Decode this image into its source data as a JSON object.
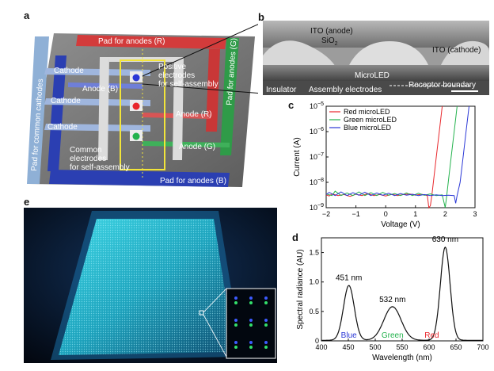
{
  "panels": {
    "a": {
      "label": "a",
      "texts": {
        "pad_r": "Pad for anodes (R)",
        "pad_g": "Pad for anodes (G)",
        "pad_b": "Pad for anodes (B)",
        "pad_common": "Pad for common cathodes",
        "cathode1": "Cathode",
        "cathode2": "Cathode",
        "cathode3": "Cathode",
        "anode_b": "Anode (B)",
        "anode_r": "Anode (R)",
        "anode_g": "Anode (G)",
        "pos1": "Positive",
        "pos2": "electrodes",
        "pos3": "for self-assembly",
        "com1": "Common",
        "com2": "electrodes",
        "com3": "for self-assembly"
      }
    },
    "b": {
      "label": "b",
      "texts": {
        "ito_anode": "ITO (anode)",
        "sio2": "SiO",
        "sio2_sub": "2",
        "ito_cathode": "ITO (cathode)",
        "microled": "MicroLED",
        "receptor": "Receptor boundary",
        "insulator": "Insulator",
        "assembly": "Assembly electrodes"
      }
    },
    "c": {
      "label": "c"
    },
    "d": {
      "label": "d"
    },
    "e": {
      "label": "e"
    }
  },
  "colors": {
    "red": "#e8262b",
    "green": "#22b24c",
    "blue": "#2a37d6"
  },
  "chart_data": [
    {
      "id": "c",
      "type": "line",
      "xlabel": "Voltage (V)",
      "ylabel": "Current (A)",
      "xlim": [
        -2,
        3
      ],
      "ylim_log10": [
        -9,
        -5
      ],
      "y_scale": "log",
      "xticks": [
        "-2",
        "-1",
        "0",
        "1",
        "2",
        "3"
      ],
      "yticks": [
        {
          "base": "10",
          "exp": "-9"
        },
        {
          "base": "10",
          "exp": "-8"
        },
        {
          "base": "10",
          "exp": "-7"
        },
        {
          "base": "10",
          "exp": "-6"
        },
        {
          "base": "10",
          "exp": "-5"
        }
      ],
      "legend_position": "top-left",
      "series": [
        {
          "name": "Red microLED",
          "color": "#e8262b",
          "points": [
            [
              -2,
              3.2e-09
            ],
            [
              -1.9,
              2.9e-09
            ],
            [
              -1.8,
              3.5e-09
            ],
            [
              -1.6,
              3e-09
            ],
            [
              -1.4,
              3.3e-09
            ],
            [
              -1.2,
              2.8e-09
            ],
            [
              -1.0,
              3.4e-09
            ],
            [
              -0.8,
              3e-09
            ],
            [
              -0.6,
              3.6e-09
            ],
            [
              -0.4,
              3e-09
            ],
            [
              -0.2,
              3.3e-09
            ],
            [
              0.0,
              2.9e-09
            ],
            [
              0.2,
              3.4e-09
            ],
            [
              0.4,
              3e-09
            ],
            [
              0.6,
              3.3e-09
            ],
            [
              0.8,
              3.5e-09
            ],
            [
              1.0,
              3.1e-09
            ],
            [
              1.2,
              3.4e-09
            ],
            [
              1.4,
              3e-09
            ],
            [
              1.45,
              1e-09
            ],
            [
              1.5,
              1.2e-09
            ],
            [
              1.55,
              3e-09
            ],
            [
              1.6,
              1e-08
            ],
            [
              1.7,
              1e-07
            ],
            [
              1.8,
              1e-06
            ],
            [
              1.9,
              1e-05
            ]
          ]
        },
        {
          "name": "Green microLED",
          "color": "#22b24c",
          "points": [
            [
              -2,
              3.5e-09
            ],
            [
              -1.8,
              3e-09
            ],
            [
              -1.7,
              4.5e-09
            ],
            [
              -1.5,
              3e-09
            ],
            [
              -1.3,
              3.8e-09
            ],
            [
              -1.1,
              3e-09
            ],
            [
              -0.9,
              4.2e-09
            ],
            [
              -0.7,
              3e-09
            ],
            [
              -0.5,
              3.9e-09
            ],
            [
              -0.3,
              3e-09
            ],
            [
              -0.1,
              4e-09
            ],
            [
              0.1,
              3.1e-09
            ],
            [
              0.3,
              3.6e-09
            ],
            [
              0.5,
              3e-09
            ],
            [
              0.7,
              3.8e-09
            ],
            [
              0.9,
              3e-09
            ],
            [
              1.1,
              3.7e-09
            ],
            [
              1.3,
              3.1e-09
            ],
            [
              1.5,
              3.5e-09
            ],
            [
              1.7,
              3e-09
            ],
            [
              1.9,
              3.2e-09
            ],
            [
              2.0,
              1e-09
            ],
            [
              2.05,
              3e-09
            ],
            [
              2.1,
              1e-08
            ],
            [
              2.2,
              1e-07
            ],
            [
              2.3,
              1e-06
            ],
            [
              2.4,
              1e-05
            ]
          ]
        },
        {
          "name": "Blue microLED",
          "color": "#2a37d6",
          "points": [
            [
              -2,
              3.3e-09
            ],
            [
              -1.9,
              4e-09
            ],
            [
              -1.7,
              3e-09
            ],
            [
              -1.5,
              4.2e-09
            ],
            [
              -1.3,
              3e-09
            ],
            [
              -1.1,
              3.9e-09
            ],
            [
              -0.9,
              3.1e-09
            ],
            [
              -0.7,
              4.1e-09
            ],
            [
              -0.5,
              3e-09
            ],
            [
              -0.3,
              3.8e-09
            ],
            [
              -0.1,
              3.1e-09
            ],
            [
              0.1,
              3.7e-09
            ],
            [
              0.3,
              3e-09
            ],
            [
              0.5,
              3.6e-09
            ],
            [
              0.7,
              3.1e-09
            ],
            [
              0.9,
              3.4e-09
            ],
            [
              1.1,
              3e-09
            ],
            [
              1.3,
              3.3e-09
            ],
            [
              1.5,
              3e-09
            ],
            [
              1.7,
              3.2e-09
            ],
            [
              1.9,
              3e-09
            ],
            [
              2.1,
              3.1e-09
            ],
            [
              2.3,
              3e-09
            ],
            [
              2.35,
              1.5e-09
            ],
            [
              2.4,
              3e-09
            ],
            [
              2.5,
              1e-08
            ],
            [
              2.6,
              1e-07
            ],
            [
              2.7,
              1e-06
            ],
            [
              2.8,
              1e-05
            ]
          ]
        }
      ]
    },
    {
      "id": "d",
      "type": "line",
      "xlabel": "Wavelength (nm)",
      "ylabel": "Spectral radiance (AU)",
      "xlim": [
        400,
        700
      ],
      "ylim": [
        0,
        1.75
      ],
      "xticks": [
        "400",
        "450",
        "500",
        "550",
        "600",
        "650",
        "700"
      ],
      "yticks": [
        "0",
        "0.5",
        "1.0",
        "1.5"
      ],
      "peaks": [
        {
          "label": "451 nm",
          "x": 451,
          "y": 0.95
        },
        {
          "label": "532 nm",
          "x": 532,
          "y": 0.58
        },
        {
          "label": "630 nm",
          "x": 630,
          "y": 1.6
        }
      ],
      "band_labels": [
        {
          "text": "Blue",
          "color": "#2a37d6",
          "x": 451
        },
        {
          "text": "Green",
          "color": "#22b24c",
          "x": 532
        },
        {
          "text": "Red",
          "color": "#e8262b",
          "x": 605
        }
      ],
      "components": [
        {
          "center": 451,
          "height": 0.93,
          "sigma": 10
        },
        {
          "center": 532,
          "height": 0.57,
          "sigma": 16
        },
        {
          "center": 630,
          "height": 1.58,
          "sigma": 9
        }
      ]
    }
  ]
}
